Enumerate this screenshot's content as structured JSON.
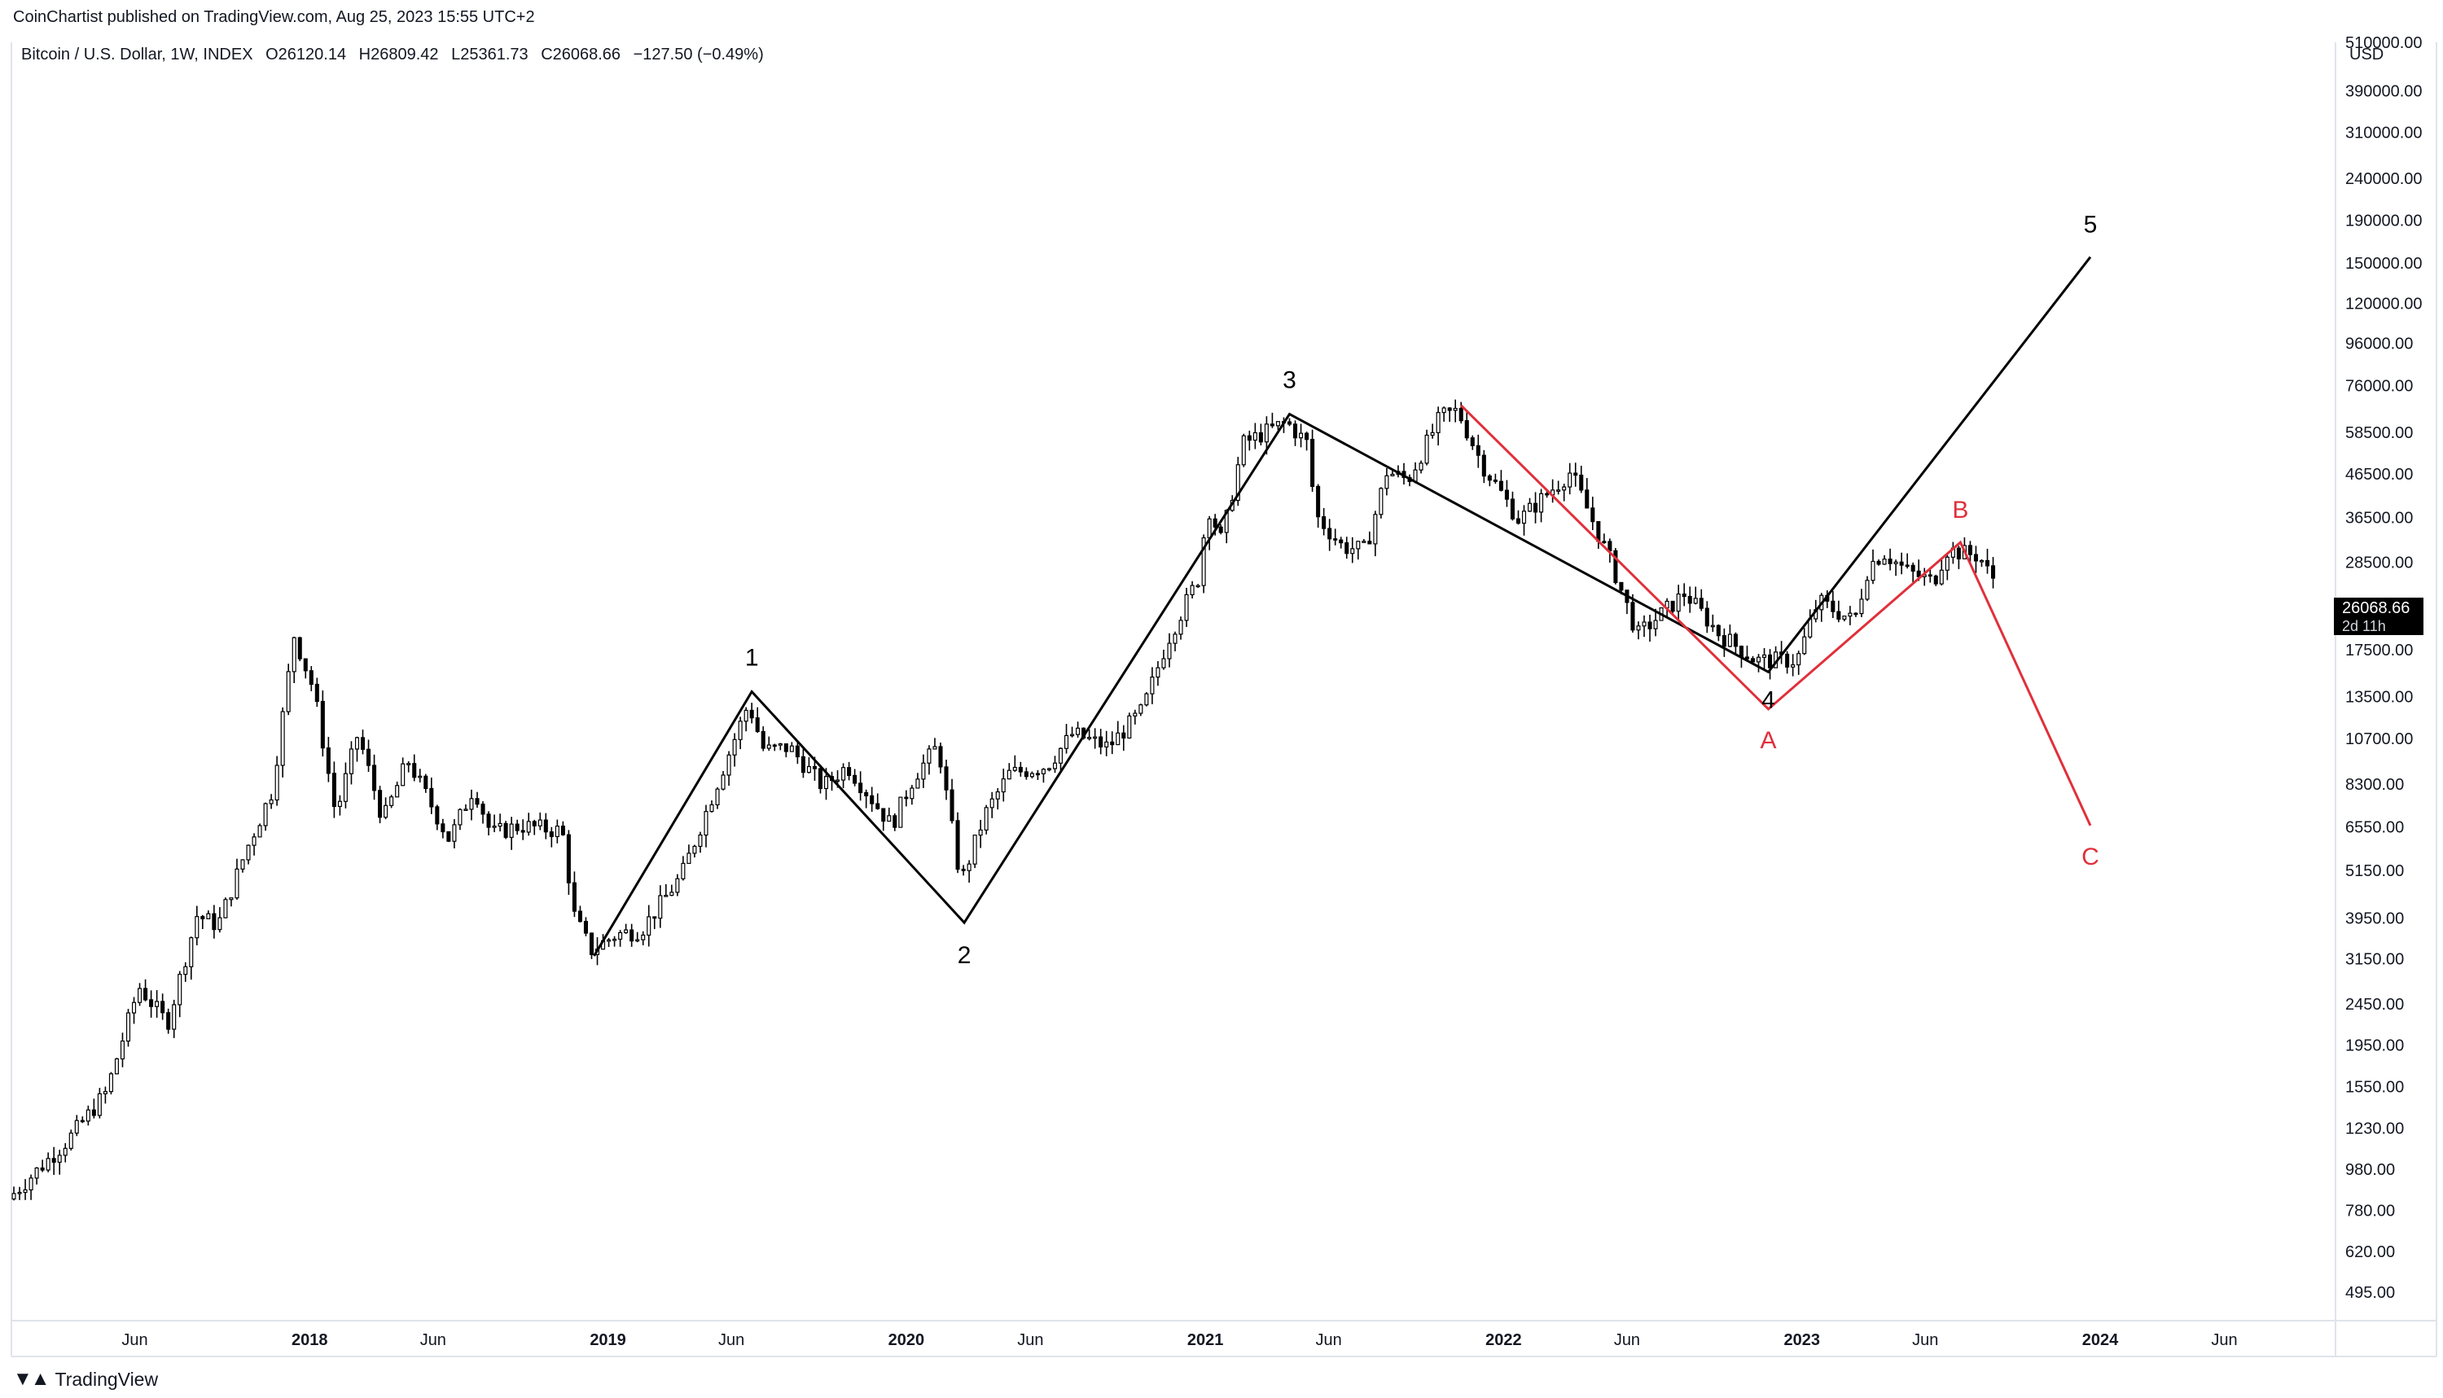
{
  "header": {
    "attribution": "CoinChartist published on TradingView.com, Aug 25, 2023 15:55 UTC+2"
  },
  "legend": {
    "symbol": "Bitcoin / U.S. Dollar, 1W, INDEX",
    "open": "O26120.14",
    "high": "H26809.42",
    "low": "L25361.73",
    "close": "C26068.66",
    "change": "−127.50 (−0.49%)"
  },
  "axis": {
    "currency": "USD",
    "price_labels": [
      "510000.00",
      "390000.00",
      "310000.00",
      "240000.00",
      "190000.00",
      "150000.00",
      "120000.00",
      "96000.00",
      "76000.00",
      "58500.00",
      "46500.00",
      "36500.00",
      "28500.00",
      "17500.00",
      "13500.00",
      "10700.00",
      "8300.00",
      "6550.00",
      "5150.00",
      "3950.00",
      "3150.00",
      "2450.00",
      "1950.00",
      "1550.00",
      "1230.00",
      "980.00",
      "780.00",
      "620.00",
      "495.00"
    ]
  },
  "price_tag": {
    "value": "26068.66",
    "countdown": "2d 11h"
  },
  "footer": {
    "logo_text": "TradingView"
  },
  "colors": {
    "impulse": "#000000",
    "correction": "#e0303b",
    "candle_up": "#ffffff",
    "candle_down": "#000000"
  },
  "chart_data": {
    "type": "candlestick",
    "y_scale": "log",
    "ylim": [
      450,
      640000
    ],
    "x_range": [
      "2017-01-01",
      "2024-10-15"
    ],
    "x_ticks": [
      {
        "label": "Jun",
        "date": "2017-06-01"
      },
      {
        "label": "2018",
        "date": "2018-01-01",
        "bold": true
      },
      {
        "label": "Jun",
        "date": "2018-06-01"
      },
      {
        "label": "2019",
        "date": "2019-01-01",
        "bold": true
      },
      {
        "label": "Jun",
        "date": "2019-06-01"
      },
      {
        "label": "2020",
        "date": "2020-01-01",
        "bold": true
      },
      {
        "label": "Jun",
        "date": "2020-06-01"
      },
      {
        "label": "2021",
        "date": "2021-01-01",
        "bold": true
      },
      {
        "label": "Jun",
        "date": "2021-06-01"
      },
      {
        "label": "2022",
        "date": "2022-01-01",
        "bold": true
      },
      {
        "label": "Jun",
        "date": "2022-06-01"
      },
      {
        "label": "2023",
        "date": "2023-01-01",
        "bold": true
      },
      {
        "label": "Jun",
        "date": "2023-06-01"
      },
      {
        "label": "2024",
        "date": "2024-01-01",
        "bold": true
      },
      {
        "label": "Jun",
        "date": "2024-06-01"
      }
    ],
    "price_anchors": [
      [
        "2017-01-01",
        830
      ],
      [
        "2017-03-15",
        1150
      ],
      [
        "2017-05-01",
        1500
      ],
      [
        "2017-06-10",
        2700
      ],
      [
        "2017-07-15",
        2200
      ],
      [
        "2017-08-20",
        4000
      ],
      [
        "2017-09-15",
        3800
      ],
      [
        "2017-10-20",
        5800
      ],
      [
        "2017-11-20",
        8000
      ],
      [
        "2017-12-17",
        19000
      ],
      [
        "2018-01-10",
        14000
      ],
      [
        "2018-02-06",
        7000
      ],
      [
        "2018-03-05",
        11000
      ],
      [
        "2018-04-05",
        6800
      ],
      [
        "2018-05-05",
        9500
      ],
      [
        "2018-06-25",
        6100
      ],
      [
        "2018-07-25",
        8200
      ],
      [
        "2018-08-15",
        6300
      ],
      [
        "2018-09-20",
        6600
      ],
      [
        "2018-11-10",
        6400
      ],
      [
        "2018-11-25",
        4000
      ],
      [
        "2018-12-15",
        3300
      ],
      [
        "2019-01-15",
        3600
      ],
      [
        "2019-02-15",
        3700
      ],
      [
        "2019-04-05",
        5000
      ],
      [
        "2019-05-15",
        8000
      ],
      [
        "2019-06-26",
        13000
      ],
      [
        "2019-07-15",
        10000
      ],
      [
        "2019-08-15",
        10200
      ],
      [
        "2019-09-25",
        8200
      ],
      [
        "2019-10-25",
        9200
      ],
      [
        "2019-12-18",
        6600
      ],
      [
        "2020-01-15",
        8700
      ],
      [
        "2020-02-13",
        10300
      ],
      [
        "2020-03-12",
        4800
      ],
      [
        "2020-04-10",
        7000
      ],
      [
        "2020-05-10",
        8800
      ],
      [
        "2020-06-25",
        9200
      ],
      [
        "2020-07-27",
        11000
      ],
      [
        "2020-09-08",
        10200
      ],
      [
        "2020-10-20",
        12500
      ],
      [
        "2020-11-20",
        18500
      ],
      [
        "2020-12-27",
        26000
      ],
      [
        "2021-01-08",
        39000
      ],
      [
        "2021-01-25",
        32000
      ],
      [
        "2021-02-20",
        55000
      ],
      [
        "2021-03-15",
        58000
      ],
      [
        "2021-04-14",
        62000
      ],
      [
        "2021-05-10",
        55000
      ],
      [
        "2021-05-20",
        37000
      ],
      [
        "2021-06-22",
        31000
      ],
      [
        "2021-07-20",
        30500
      ],
      [
        "2021-08-15",
        47000
      ],
      [
        "2021-09-10",
        45000
      ],
      [
        "2021-10-20",
        64000
      ],
      [
        "2021-11-10",
        66000
      ],
      [
        "2021-12-10",
        49000
      ],
      [
        "2022-01-24",
        36000
      ],
      [
        "2022-03-28",
        47000
      ],
      [
        "2022-05-15",
        29000
      ],
      [
        "2022-06-18",
        19000
      ],
      [
        "2022-08-15",
        24000
      ],
      [
        "2022-09-25",
        19200
      ],
      [
        "2022-11-10",
        16500
      ],
      [
        "2022-12-30",
        16500
      ],
      [
        "2023-01-25",
        23000
      ],
      [
        "2023-03-10",
        20500
      ],
      [
        "2023-03-28",
        28000
      ],
      [
        "2023-04-15",
        30000
      ],
      [
        "2023-05-15",
        27000
      ],
      [
        "2023-06-15",
        25500
      ],
      [
        "2023-07-01",
        30500
      ],
      [
        "2023-08-10",
        29500
      ],
      [
        "2023-08-25",
        26068.66
      ]
    ],
    "wave_impulse": [
      {
        "label": "",
        "date": "2018-12-15",
        "price": 3200
      },
      {
        "label": "1",
        "date": "2019-06-26",
        "price": 13880
      },
      {
        "label": "2",
        "date": "2020-03-12",
        "price": 3850
      },
      {
        "label": "3",
        "date": "2021-04-14",
        "price": 64800
      },
      {
        "label": "4",
        "date": "2022-11-21",
        "price": 15480
      },
      {
        "label": "5",
        "date": "2023-12-20",
        "price": 155000
      }
    ],
    "wave_correction": [
      {
        "label": "",
        "date": "2021-11-10",
        "price": 68000
      },
      {
        "label": "A",
        "date": "2022-11-21",
        "price": 12600
      },
      {
        "label": "B",
        "date": "2023-07-14",
        "price": 31800
      },
      {
        "label": "C",
        "date": "2023-12-20",
        "price": 6600
      }
    ]
  }
}
